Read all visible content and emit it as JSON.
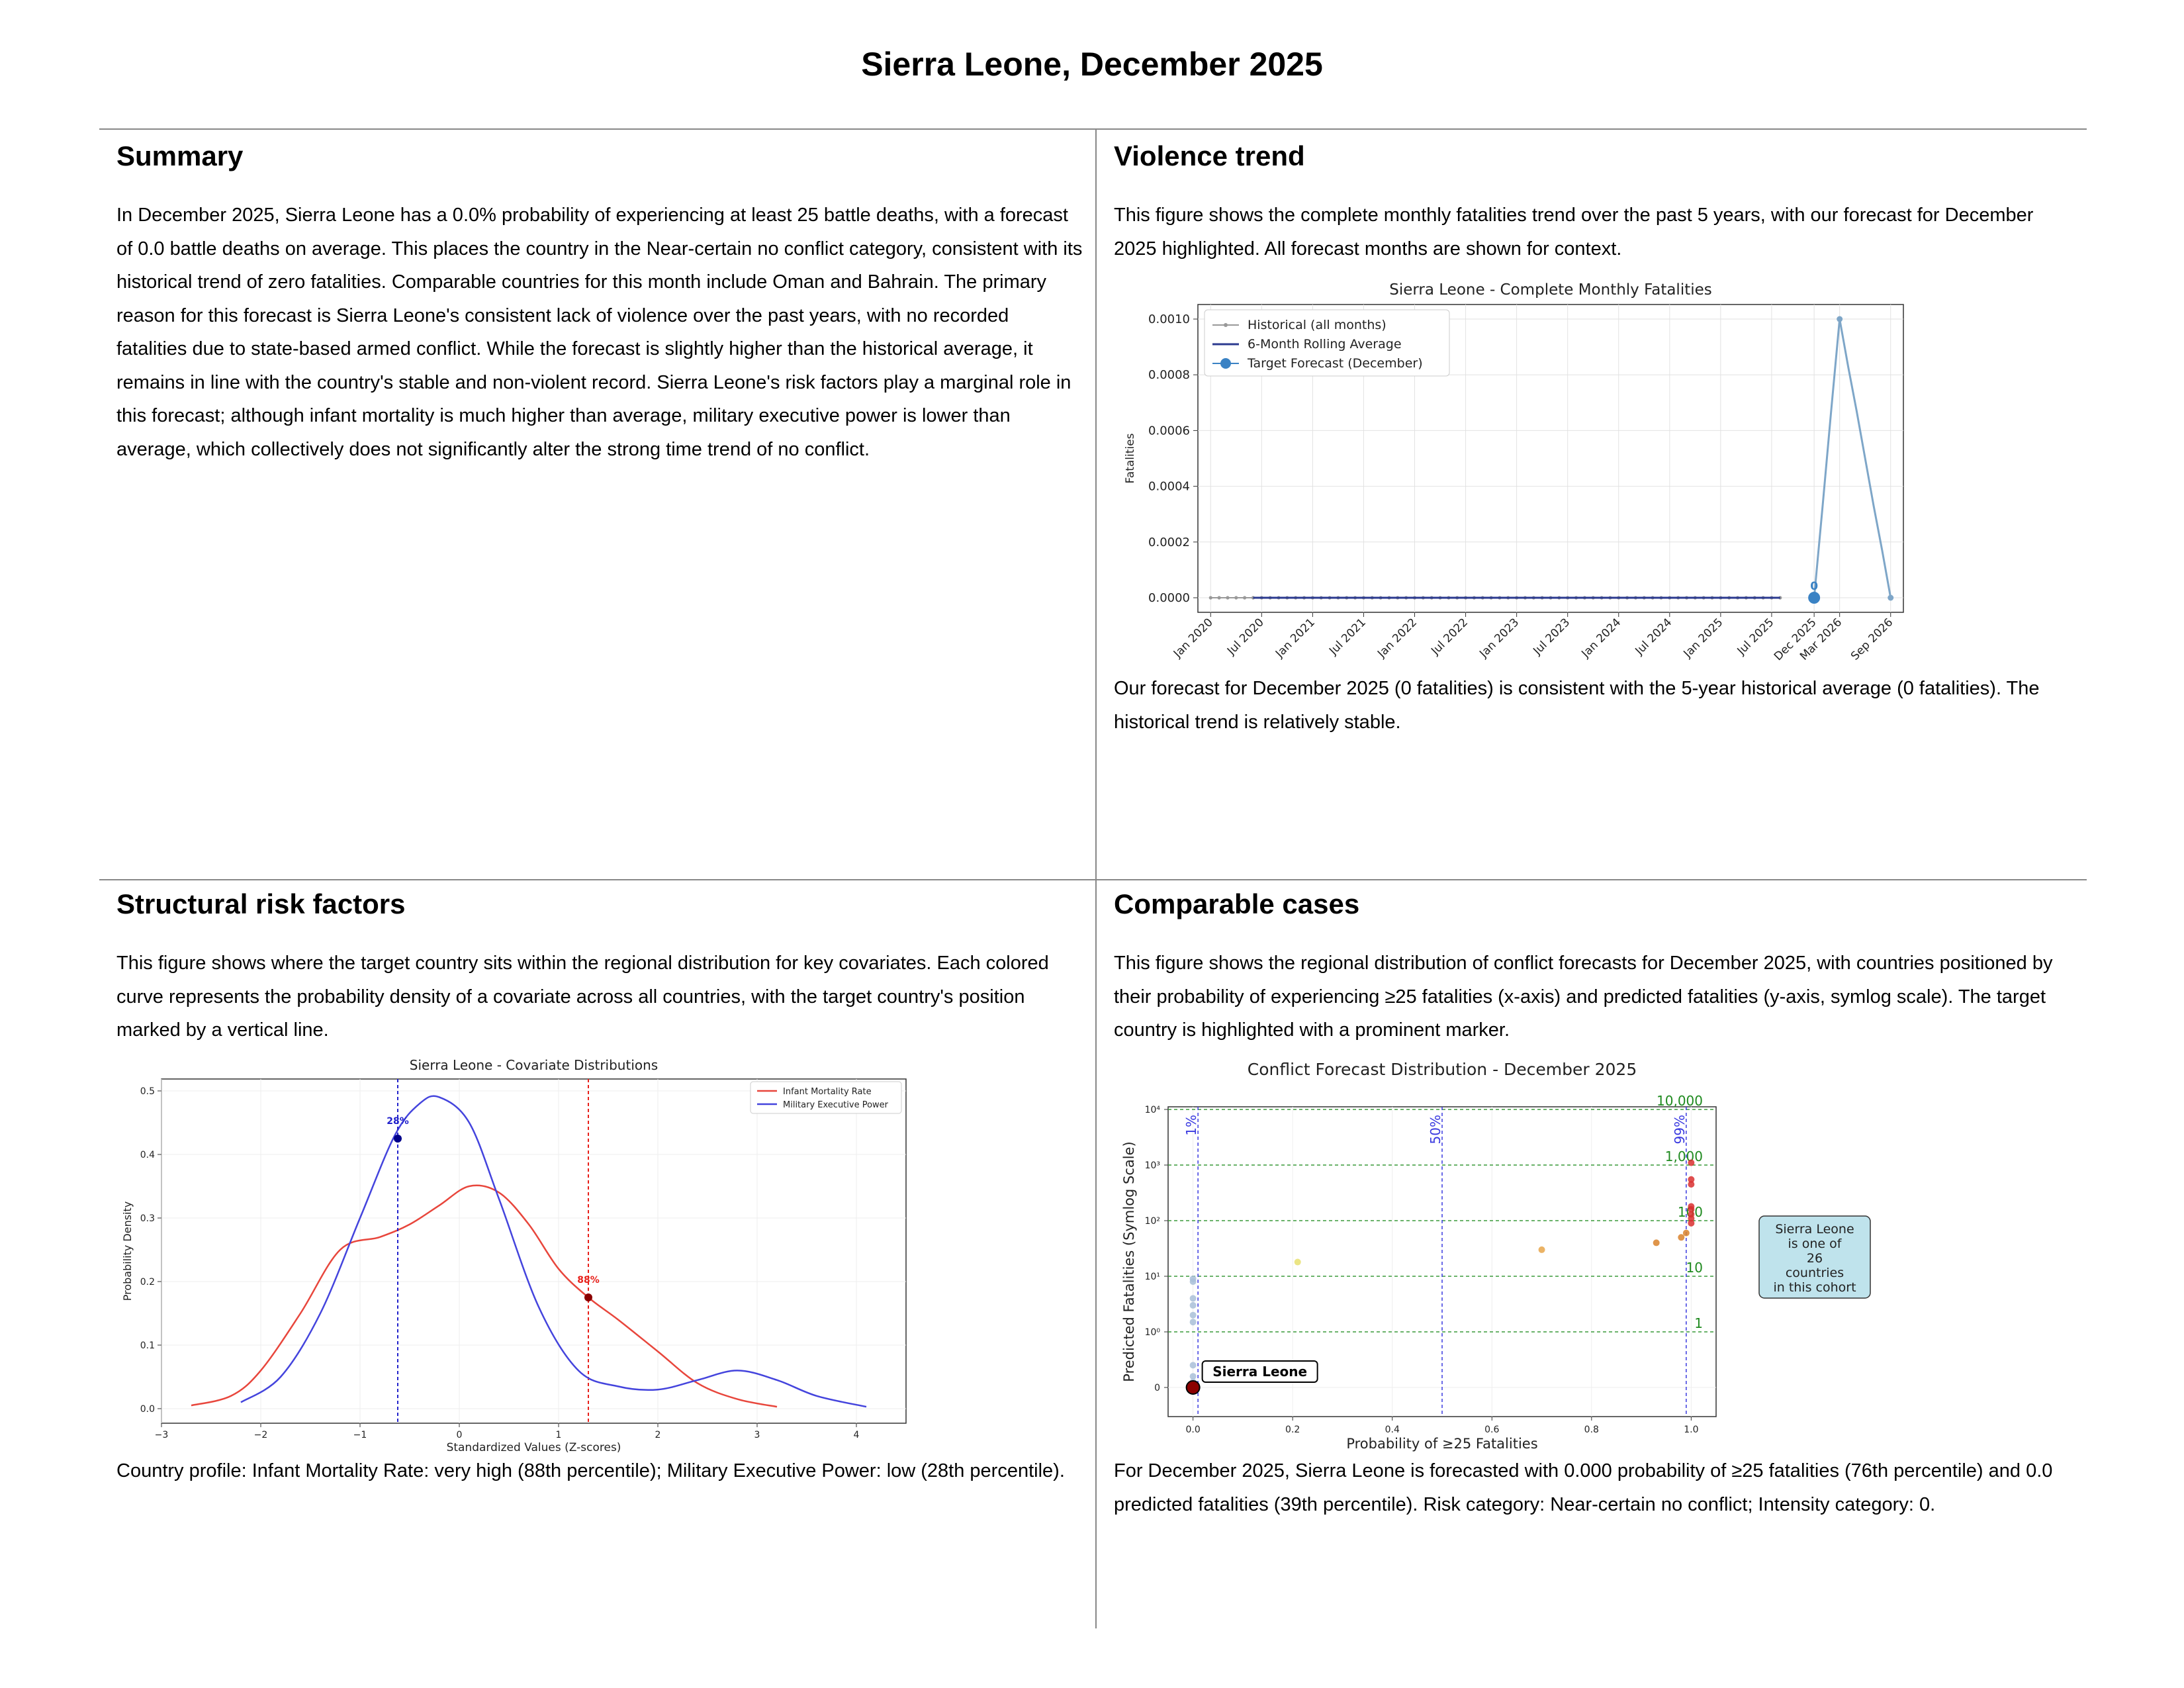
{
  "title": "Sierra Leone, December 2025",
  "summary": {
    "heading": "Summary",
    "text": "In December 2025, Sierra Leone has a 0.0% probability of experiencing at least 25 battle deaths, with a forecast of 0.0 battle deaths on average. This places the country in the Near-certain no conflict category, consistent with its historical trend of zero fatalities. Comparable countries for this month include Oman and Bahrain. The primary reason for this forecast is Sierra Leone's consistent lack of violence over the past years, with no recorded fatalities due to state-based armed conflict. While the forecast is slightly higher than the historical average, it remains in line with the country's stable and non-violent record. Sierra Leone's risk factors play a marginal role in this forecast; although infant mortality is much higher than average, military executive power is lower than average, which collectively does not significantly alter the strong time trend of no conflict."
  },
  "violence": {
    "heading": "Violence trend",
    "intro": "This figure shows the complete monthly fatalities trend over the past 5 years, with our forecast for December 2025 highlighted. All forecast months are shown for context.",
    "outro": "Our forecast for December 2025 (0 fatalities) is consistent with the 5-year historical average (0 fatalities). The historical trend is relatively stable."
  },
  "structural": {
    "heading": "Structural risk factors",
    "intro": "This figure shows where the target country sits within the regional distribution for key covariates. Each colored curve represents the probability density of a covariate across all countries, with the target country's position marked by a vertical line.",
    "outro": "Country profile: Infant Mortality Rate: very high (88th percentile); Military Executive Power: low (28th percentile)."
  },
  "comparable": {
    "heading": "Comparable cases",
    "intro": "This figure shows the regional distribution of conflict forecasts for December 2025, with countries positioned by their probability of experiencing ≥25 fatalities (x-axis) and predicted fatalities (y-axis, symlog scale). The target country is highlighted with a prominent marker.",
    "outro": "For December 2025, Sierra Leone is forecasted with 0.000 probability of ≥25 fatalities (76th percentile) and 0.0 predicted fatalities (39th percentile). Risk category: Near-certain no conflict; Intensity category: 0."
  },
  "chart_data": [
    {
      "type": "line",
      "title": "Sierra Leone - Complete Monthly Fatalities",
      "ylabel": "Fatalities",
      "xlabel": "",
      "ylim": [
        0,
        0.001
      ],
      "yticks": [
        "0.0000",
        "0.0002",
        "0.0004",
        "0.0006",
        "0.0008",
        "0.0010"
      ],
      "xticks": [
        "Jan 2020",
        "Jul 2020",
        "Jan 2021",
        "Jul 2021",
        "Jan 2022",
        "Jul 2022",
        "Jan 2023",
        "Jul 2023",
        "Jan 2024",
        "Jul 2024",
        "Jan 2025",
        "Jul 2025",
        "Dec 2025",
        "Mar 2026",
        "Sep 2026"
      ],
      "legend": [
        "Historical (all months)",
        "6-Month Rolling Average",
        "Target Forecast (December)"
      ],
      "legend_position": "upper-left",
      "grid": true,
      "series": [
        {
          "name": "Historical (all months)",
          "x": [
            "2020-01",
            "2025-08"
          ],
          "values": "0 for every month"
        },
        {
          "name": "6-Month Rolling Average",
          "x": [
            "2020-06",
            "2025-08"
          ],
          "values": "0 for every month"
        },
        {
          "name": "Target Forecast (December)",
          "x": [
            "2025-12"
          ],
          "values": [
            0
          ],
          "label": "0"
        },
        {
          "name": "Forecast months",
          "x": [
            "2025-12",
            "2026-01",
            "2026-02",
            "2026-03",
            "2026-04",
            "2026-05",
            "2026-06",
            "2026-07",
            "2026-08",
            "2026-09"
          ],
          "values": [
            0,
            0.00033,
            0.00067,
            0.001,
            0.00083,
            0.00067,
            0.0005,
            0.00033,
            0.00017,
            0
          ]
        }
      ]
    },
    {
      "type": "line",
      "title": "Sierra Leone - Covariate Distributions",
      "xlabel": "Standardized Values (Z-scores)",
      "ylabel": "Probability Density",
      "xlim": [
        -3,
        4.5
      ],
      "ylim": [
        0,
        0.5
      ],
      "xticks": [
        "−3",
        "−2",
        "−1",
        "0",
        "1",
        "2",
        "3",
        "4"
      ],
      "yticks": [
        "0.0",
        "0.1",
        "0.2",
        "0.3",
        "0.4",
        "0.5"
      ],
      "legend_position": "upper-right",
      "grid": true,
      "series": [
        {
          "name": "Infant Mortality Rate",
          "color": "#e8463c",
          "x": [
            -2.7,
            -2.3,
            -2.0,
            -1.6,
            -1.2,
            -0.8,
            -0.5,
            -0.2,
            0.1,
            0.4,
            0.7,
            1.0,
            1.3,
            1.6,
            2.0,
            2.4,
            2.8,
            3.2
          ],
          "values": [
            0.005,
            0.02,
            0.06,
            0.15,
            0.25,
            0.27,
            0.29,
            0.32,
            0.35,
            0.34,
            0.29,
            0.22,
            0.175,
            0.14,
            0.09,
            0.04,
            0.015,
            0.003
          ],
          "marker": {
            "x": 1.3,
            "y": 0.175,
            "label": "88%"
          }
        },
        {
          "name": "Military Executive Power",
          "color": "#4444dd",
          "x": [
            -2.2,
            -1.8,
            -1.4,
            -1.0,
            -0.65,
            -0.4,
            -0.2,
            0.1,
            0.4,
            0.8,
            1.2,
            1.6,
            2.0,
            2.4,
            2.8,
            3.2,
            3.6,
            4.1
          ],
          "values": [
            0.01,
            0.05,
            0.15,
            0.3,
            0.43,
            0.48,
            0.49,
            0.45,
            0.33,
            0.16,
            0.06,
            0.035,
            0.03,
            0.045,
            0.06,
            0.045,
            0.02,
            0.003
          ],
          "marker": {
            "x": -0.62,
            "y": 0.425,
            "label": "28%"
          }
        }
      ]
    },
    {
      "type": "scatter",
      "title": "Conflict Forecast Distribution - December 2025",
      "xlabel": "Probability of ≥25 Fatalities",
      "ylabel": "Predicted Fatalities (Symlog Scale)",
      "xlim": [
        -0.05,
        1.05
      ],
      "xticks": [
        "0.0",
        "0.2",
        "0.4",
        "0.6",
        "0.8",
        "1.0"
      ],
      "yticks": [
        "0",
        "10⁰",
        "10¹",
        "10²",
        "10³",
        "10⁴"
      ],
      "yscale": "symlog",
      "hlines": [
        {
          "y": 1,
          "label": "1"
        },
        {
          "y": 10,
          "label": "10"
        },
        {
          "y": 100,
          "label": "100"
        },
        {
          "y": 1000,
          "label": "1,000"
        },
        {
          "y": 10000,
          "label": "10,000"
        }
      ],
      "vlines": [
        {
          "x": 0.01,
          "label": "1%"
        },
        {
          "x": 0.5,
          "label": "50%"
        },
        {
          "x": 0.99,
          "label": "99%"
        }
      ],
      "highlight": {
        "name": "Sierra Leone",
        "x": 0.0,
        "y": 0
      },
      "annotation": "Sierra Leone\nis one of\n26\ncountries\nin this cohort",
      "points": [
        {
          "x": 0.0,
          "y": 0
        },
        {
          "x": 0.0,
          "y": 0.1
        },
        {
          "x": 0.0,
          "y": 0.2
        },
        {
          "x": 0.0,
          "y": 0.4
        },
        {
          "x": 0.0,
          "y": 1.5
        },
        {
          "x": 0.0,
          "y": 2
        },
        {
          "x": 0.0,
          "y": 3
        },
        {
          "x": 0.0,
          "y": 4
        },
        {
          "x": 0.0,
          "y": 8
        },
        {
          "x": 0.0,
          "y": 9
        },
        {
          "x": 0.21,
          "y": 18
        },
        {
          "x": 0.7,
          "y": 30
        },
        {
          "x": 0.93,
          "y": 40
        },
        {
          "x": 0.98,
          "y": 50
        },
        {
          "x": 0.99,
          "y": 60
        },
        {
          "x": 1.0,
          "y": 90
        },
        {
          "x": 1.0,
          "y": 110
        },
        {
          "x": 1.0,
          "y": 130
        },
        {
          "x": 1.0,
          "y": 160
        },
        {
          "x": 1.0,
          "y": 180
        },
        {
          "x": 1.0,
          "y": 450
        },
        {
          "x": 1.0,
          "y": 550
        },
        {
          "x": 1.0,
          "y": 1100
        }
      ]
    }
  ]
}
